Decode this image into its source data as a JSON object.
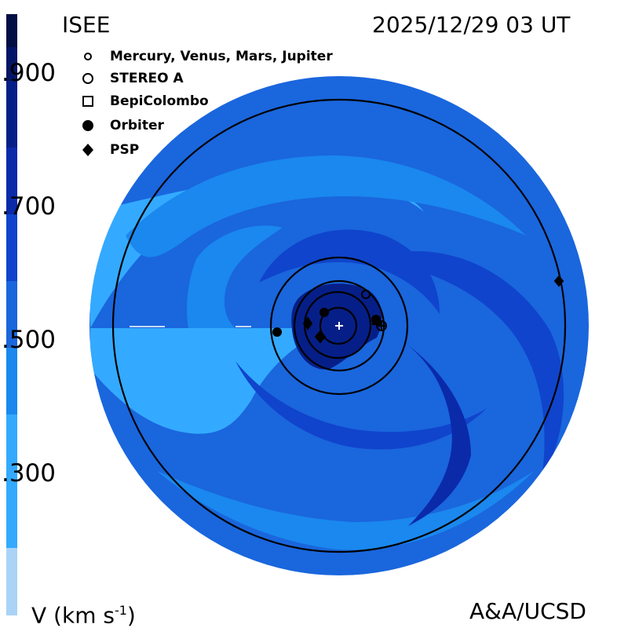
{
  "header": {
    "source": "ISEE",
    "timestamp": "2025/12/29 03 UT"
  },
  "legend": [
    {
      "symbol": "small-circle-icon",
      "label": "Mercury, Venus, Mars, Jupiter"
    },
    {
      "symbol": "large-circle-icon",
      "label": "STEREO A"
    },
    {
      "symbol": "square-icon",
      "label": "BepiColombo"
    },
    {
      "symbol": "filled-circle-icon",
      "label": "Orbiter"
    },
    {
      "symbol": "diamond-icon",
      "label": "PSP"
    }
  ],
  "colorbar": {
    "ticks": [
      ".900",
      ".700",
      ".500",
      ".300"
    ],
    "colors": [
      "#aad3f7",
      "#33aaff",
      "#1a88ee",
      "#1a66dd",
      "#1044cc",
      "#0a2aaa",
      "#061f88",
      "#031566",
      "#020e44",
      "#01081e"
    ]
  },
  "footer": {
    "quantity": "V (km s",
    "exponent": "-1",
    "closing": ")",
    "credit": "A&A/UCSD"
  },
  "map_colors": {
    "bright": "#33aaff",
    "light": "#1a88ee",
    "mid": "#1a66dd",
    "dark": "#1044cc",
    "deep": "#0a2aaa",
    "navy": "#061f88",
    "orbit_line": "#000000"
  }
}
